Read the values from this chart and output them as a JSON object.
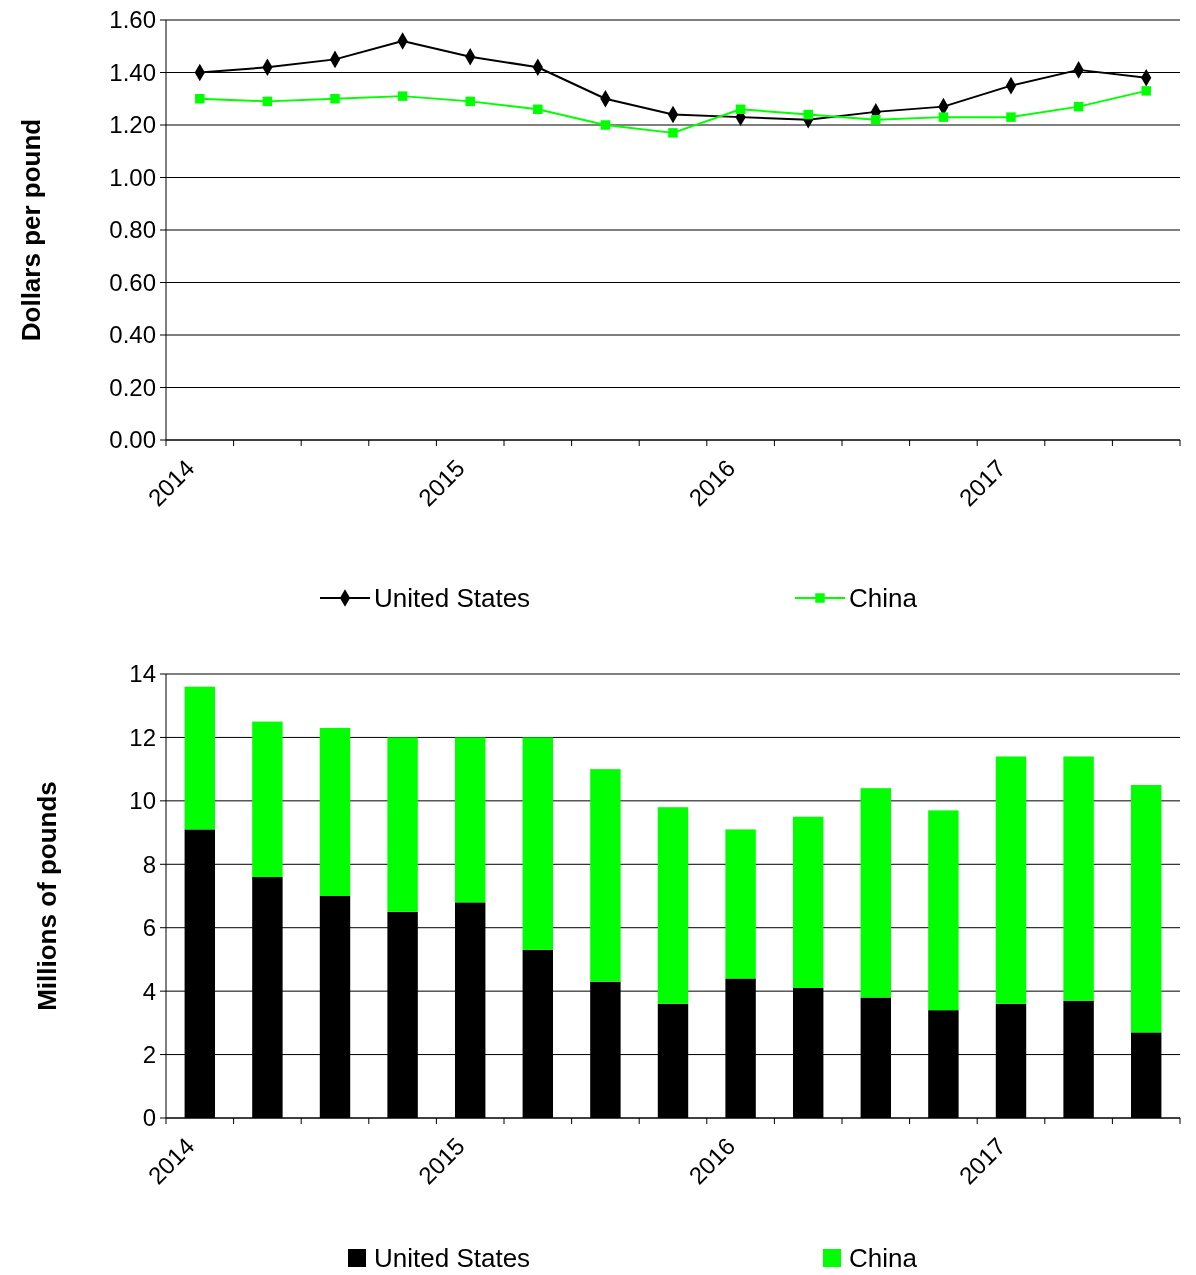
{
  "chart_data": [
    {
      "type": "line",
      "ylabel": "Dollars per pound",
      "categories": [
        "2014",
        null,
        null,
        null,
        "2015",
        null,
        null,
        null,
        "2016",
        null,
        null,
        null,
        "2017",
        null,
        null
      ],
      "ylim": [
        0,
        1.6
      ],
      "yticks": [
        {
          "value": 0,
          "label": "0.00"
        },
        {
          "value": 0.2,
          "label": "0.20"
        },
        {
          "value": 0.4,
          "label": "0.40"
        },
        {
          "value": 0.6,
          "label": "0.60"
        },
        {
          "value": 0.8,
          "label": "0.80"
        },
        {
          "value": 1,
          "label": "1.00"
        },
        {
          "value": 1.2,
          "label": "1.20"
        },
        {
          "value": 1.4,
          "label": "1.40"
        },
        {
          "value": 1.6,
          "label": "1.60"
        }
      ],
      "grid": "y",
      "legend": "bottom",
      "series": [
        {
          "name": "United States",
          "color": "#000000",
          "marker": "diamond",
          "values": [
            1.4,
            1.42,
            1.45,
            1.52,
            1.46,
            1.42,
            1.3,
            1.24,
            1.23,
            1.22,
            1.25,
            1.27,
            1.35,
            1.41,
            1.38
          ]
        },
        {
          "name": "China",
          "color": "#00ff00",
          "marker": "square",
          "values": [
            1.3,
            1.29,
            1.3,
            1.31,
            1.29,
            1.26,
            1.2,
            1.17,
            1.26,
            1.24,
            1.22,
            1.23,
            1.23,
            1.27,
            1.33
          ]
        }
      ]
    },
    {
      "type": "bar",
      "stacked": true,
      "ylabel": "Millions of pounds",
      "categories": [
        "2014",
        null,
        null,
        null,
        "2015",
        null,
        null,
        null,
        "2016",
        null,
        null,
        null,
        "2017",
        null,
        null
      ],
      "ylim": [
        0,
        14
      ],
      "yticks": [
        0,
        2,
        4,
        6,
        8,
        10,
        12,
        14
      ],
      "grid": "y",
      "legend": "bottom",
      "series": [
        {
          "name": "United States",
          "color": "#000000",
          "values": [
            9.1,
            7.6,
            7.0,
            6.5,
            6.8,
            5.3,
            4.3,
            3.6,
            4.4,
            4.1,
            3.8,
            3.4,
            3.6,
            3.7,
            2.7
          ]
        },
        {
          "name": "China",
          "color": "#00ff00",
          "values": [
            4.5,
            4.9,
            5.3,
            5.5,
            5.2,
            6.7,
            6.7,
            6.2,
            4.7,
            5.4,
            6.6,
            6.3,
            7.8,
            7.7,
            7.8
          ]
        }
      ]
    }
  ]
}
